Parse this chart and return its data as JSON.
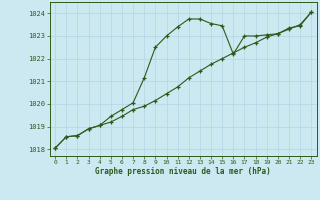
{
  "background_color": "#cce8f0",
  "grid_color": "#b8d8e8",
  "line_color": "#2d5a1b",
  "title": "Graphe pression niveau de la mer (hPa)",
  "xlim": [
    -0.5,
    23.5
  ],
  "ylim": [
    1017.7,
    1024.5
  ],
  "yticks": [
    1018,
    1019,
    1020,
    1021,
    1022,
    1023,
    1024
  ],
  "xticks": [
    0,
    1,
    2,
    3,
    4,
    5,
    6,
    7,
    8,
    9,
    10,
    11,
    12,
    13,
    14,
    15,
    16,
    17,
    18,
    19,
    20,
    21,
    22,
    23
  ],
  "line1_x": [
    0,
    1,
    2,
    3,
    4,
    5,
    6,
    7,
    8,
    9,
    10,
    11,
    12,
    13,
    14,
    15,
    16,
    17,
    18,
    19,
    20,
    21,
    22,
    23
  ],
  "line1_y": [
    1018.05,
    1018.55,
    1018.6,
    1018.9,
    1019.05,
    1019.45,
    1019.75,
    1020.05,
    1021.15,
    1022.5,
    1023.0,
    1023.4,
    1023.75,
    1023.75,
    1023.55,
    1023.45,
    1022.2,
    1023.0,
    1023.0,
    1023.05,
    1023.1,
    1023.35,
    1023.45,
    1024.05
  ],
  "line2_x": [
    0,
    1,
    2,
    3,
    4,
    5,
    6,
    7,
    8,
    9,
    10,
    11,
    12,
    13,
    14,
    15,
    16,
    17,
    18,
    19,
    20,
    21,
    22,
    23
  ],
  "line2_y": [
    1018.05,
    1018.55,
    1018.6,
    1018.9,
    1019.05,
    1019.2,
    1019.45,
    1019.75,
    1019.9,
    1020.15,
    1020.45,
    1020.75,
    1021.15,
    1021.45,
    1021.75,
    1022.0,
    1022.25,
    1022.5,
    1022.7,
    1022.95,
    1023.1,
    1023.3,
    1023.5,
    1024.05
  ]
}
